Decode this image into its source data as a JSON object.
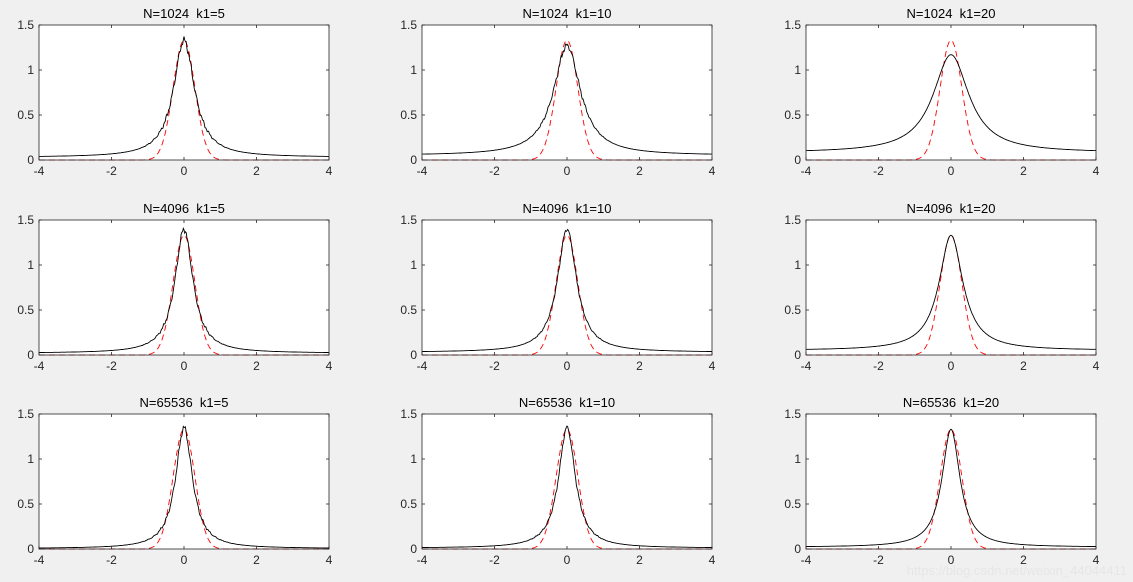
{
  "figure": {
    "background": "#f0f0f0",
    "axes_background": "#ffffff",
    "axis_color": "#262626",
    "empirical_color": "#000000",
    "reference_color": "#ff0000"
  },
  "watermark": "https://blog.csdn.net/weixin_44044411",
  "chart_data": [
    {
      "type": "line",
      "title": "N=1024  k1=5",
      "xlim": [
        -4,
        4
      ],
      "ylim": [
        0,
        1.5
      ],
      "xticks": [
        -4,
        -2,
        0,
        2,
        4
      ],
      "yticks": [
        0,
        0.5,
        1,
        1.5
      ],
      "xlabel": "",
      "ylabel": "",
      "grid": false,
      "peak": 1.33,
      "baseline": 0.03,
      "gamma": 0.35,
      "noise": 0.05,
      "series": [
        {
          "style": "solid",
          "color": "#000000"
        },
        {
          "style": "dashed",
          "color": "#ff0000"
        }
      ]
    },
    {
      "type": "line",
      "title": "N=1024  k1=10",
      "xlim": [
        -4,
        4
      ],
      "ylim": [
        0,
        1.5
      ],
      "xticks": [
        -4,
        -2,
        0,
        2,
        4
      ],
      "yticks": [
        0,
        0.5,
        1,
        1.5
      ],
      "xlabel": "",
      "ylabel": "",
      "grid": false,
      "peak": 1.27,
      "baseline": 0.05,
      "gamma": 0.45,
      "noise": 0.04,
      "series": [
        {
          "style": "solid",
          "color": "#000000"
        },
        {
          "style": "dashed",
          "color": "#ff0000"
        }
      ]
    },
    {
      "type": "line",
      "title": "N=1024  k1=20",
      "xlim": [
        -4,
        4
      ],
      "ylim": [
        0,
        1.5
      ],
      "xticks": [
        -4,
        -2,
        0,
        2,
        4
      ],
      "yticks": [
        0,
        0.5,
        1,
        1.5
      ],
      "xlabel": "",
      "ylabel": "",
      "grid": false,
      "peak": 1.17,
      "baseline": 0.08,
      "gamma": 0.6,
      "noise": 0.0,
      "series": [
        {
          "style": "solid",
          "color": "#000000"
        },
        {
          "style": "dashed",
          "color": "#ff0000"
        }
      ]
    },
    {
      "type": "line",
      "title": "N=4096  k1=5",
      "xlim": [
        -4,
        4
      ],
      "ylim": [
        0,
        1.5
      ],
      "xticks": [
        -4,
        -2,
        0,
        2,
        4
      ],
      "yticks": [
        0,
        0.5,
        1,
        1.5
      ],
      "xlabel": "",
      "ylabel": "",
      "grid": false,
      "peak": 1.4,
      "baseline": 0.02,
      "gamma": 0.3,
      "noise": 0.04,
      "series": [
        {
          "style": "solid",
          "color": "#000000"
        },
        {
          "style": "dashed",
          "color": "#ff0000"
        }
      ]
    },
    {
      "type": "line",
      "title": "N=4096  k1=10",
      "xlim": [
        -4,
        4
      ],
      "ylim": [
        0,
        1.5
      ],
      "xticks": [
        -4,
        -2,
        0,
        2,
        4
      ],
      "yticks": [
        0,
        0.5,
        1,
        1.5
      ],
      "xlabel": "",
      "ylabel": "",
      "grid": false,
      "peak": 1.4,
      "baseline": 0.03,
      "gamma": 0.32,
      "noise": 0.03,
      "series": [
        {
          "style": "solid",
          "color": "#000000"
        },
        {
          "style": "dashed",
          "color": "#ff0000"
        }
      ]
    },
    {
      "type": "line",
      "title": "N=4096  k1=20",
      "xlim": [
        -4,
        4
      ],
      "ylim": [
        0,
        1.5
      ],
      "xticks": [
        -4,
        -2,
        0,
        2,
        4
      ],
      "yticks": [
        0,
        0.5,
        1,
        1.5
      ],
      "xlabel": "",
      "ylabel": "",
      "grid": false,
      "peak": 1.33,
      "baseline": 0.05,
      "gamma": 0.4,
      "noise": 0.0,
      "series": [
        {
          "style": "solid",
          "color": "#000000"
        },
        {
          "style": "dashed",
          "color": "#ff0000"
        }
      ]
    },
    {
      "type": "line",
      "title": "N=65536  k1=5",
      "xlim": [
        -4,
        4
      ],
      "ylim": [
        0,
        1.5
      ],
      "xticks": [
        -4,
        -2,
        0,
        2,
        4
      ],
      "yticks": [
        0,
        0.5,
        1,
        1.5
      ],
      "xlabel": "",
      "ylabel": "",
      "grid": false,
      "peak": 1.35,
      "baseline": 0.005,
      "gamma": 0.28,
      "noise": 0.04,
      "series": [
        {
          "style": "solid",
          "color": "#000000"
        },
        {
          "style": "dashed",
          "color": "#ff0000"
        }
      ]
    },
    {
      "type": "line",
      "title": "N=65536  k1=10",
      "xlim": [
        -4,
        4
      ],
      "ylim": [
        0,
        1.5
      ],
      "xticks": [
        -4,
        -2,
        0,
        2,
        4
      ],
      "yticks": [
        0,
        0.5,
        1,
        1.5
      ],
      "xlabel": "",
      "ylabel": "",
      "grid": false,
      "peak": 1.35,
      "baseline": 0.01,
      "gamma": 0.28,
      "noise": 0.03,
      "series": [
        {
          "style": "solid",
          "color": "#000000"
        },
        {
          "style": "dashed",
          "color": "#ff0000"
        }
      ]
    },
    {
      "type": "line",
      "title": "N=65536  k1=20",
      "xlim": [
        -4,
        4
      ],
      "ylim": [
        0,
        1.5
      ],
      "xticks": [
        -4,
        -2,
        0,
        2,
        4
      ],
      "yticks": [
        0,
        0.5,
        1,
        1.5
      ],
      "xlabel": "",
      "ylabel": "",
      "grid": false,
      "peak": 1.33,
      "baseline": 0.02,
      "gamma": 0.3,
      "noise": 0.0,
      "series": [
        {
          "style": "solid",
          "color": "#000000"
        },
        {
          "style": "dashed",
          "color": "#ff0000"
        }
      ]
    }
  ]
}
